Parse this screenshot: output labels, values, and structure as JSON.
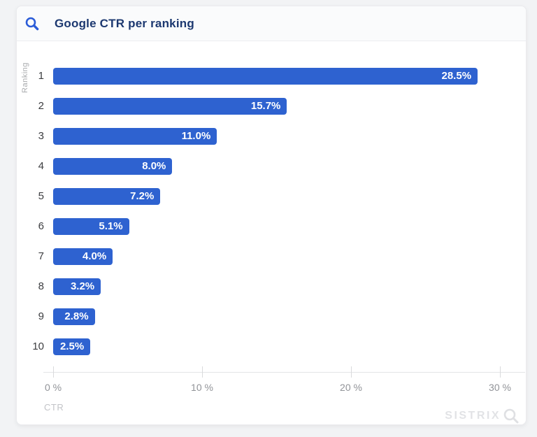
{
  "header": {
    "title": "Google CTR per ranking",
    "icon": "search-icon"
  },
  "chart_data": {
    "type": "bar",
    "orientation": "horizontal",
    "title": "Google CTR per ranking",
    "categories": [
      "1",
      "2",
      "3",
      "4",
      "5",
      "6",
      "7",
      "8",
      "9",
      "10"
    ],
    "values": [
      28.5,
      15.7,
      11.0,
      8.0,
      7.2,
      5.1,
      4.0,
      3.2,
      2.8,
      2.5
    ],
    "bar_labels": [
      "28.5%",
      "15.7%",
      "11.0%",
      "8.0%",
      "7.2%",
      "5.1%",
      "4.0%",
      "3.2%",
      "2.8%",
      "2.5%"
    ],
    "xlabel": "CTR",
    "ylabel": "Ranking",
    "xticks": [
      0,
      10,
      20,
      30
    ],
    "xtick_labels": [
      "0 %",
      "10 %",
      "20 %",
      "30 %"
    ],
    "xlim": [
      0,
      32
    ],
    "grid": false,
    "legend": "none",
    "bar_color": "#2e62d0",
    "bar_label_color": "#ffffff"
  },
  "footer": {
    "brand": "SISTRIX",
    "icon": "magnifier-icon"
  },
  "colors": {
    "accent_blue": "#2e62d0",
    "title_navy": "#1c3870",
    "axis_gray": "#919398",
    "watermark_gray": "#e2e3e6"
  }
}
